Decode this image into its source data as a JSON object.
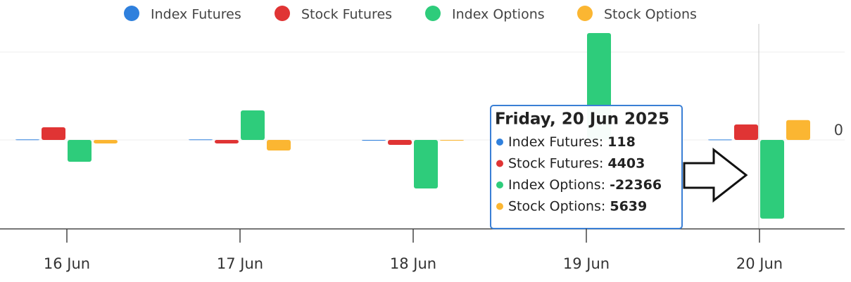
{
  "chart_data": {
    "type": "bar",
    "categories": [
      "16 Jun",
      "17 Jun",
      "18 Jun",
      "19 Jun",
      "20 Jun"
    ],
    "series": [
      {
        "name": "Index Futures",
        "color": "#2f80dd",
        "values": [
          150,
          150,
          0,
          null,
          118
        ]
      },
      {
        "name": "Stock Futures",
        "color": "#e03434",
        "values": [
          3600,
          -1000,
          -1400,
          null,
          4403
        ]
      },
      {
        "name": "Index Options",
        "color": "#2ecc7b",
        "values": [
          -6200,
          8400,
          -13800,
          30400,
          -22366
        ]
      },
      {
        "name": "Stock Options",
        "color": "#fbb632",
        "values": [
          -1000,
          -3000,
          -200,
          null,
          5639
        ]
      }
    ],
    "ylim": [
      -25200,
      33000
    ],
    "yticks": [
      0
    ],
    "grid": true,
    "legend": "top",
    "tooltip": {
      "title": "Friday, 20 Jun 2025",
      "items": [
        {
          "label": "Index Futures:",
          "value": 118
        },
        {
          "label": "Stock Futures:",
          "value": 4403
        },
        {
          "label": "Index Options:",
          "value": -22366
        },
        {
          "label": "Stock Options:",
          "value": 5639
        }
      ]
    }
  }
}
